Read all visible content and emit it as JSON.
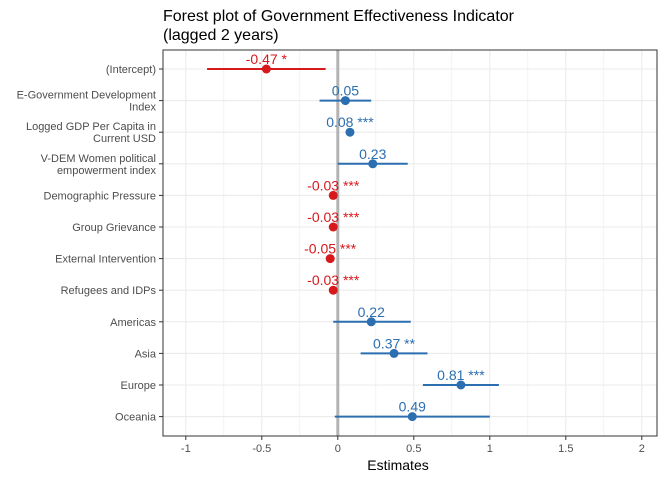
{
  "chart_data": {
    "type": "forest",
    "title_lines": [
      "Forest plot of Government Effectiveness Indicator",
      "(lagged 2 years)"
    ],
    "xlabel": "Estimates",
    "xlim": [
      -1.15,
      2.1
    ],
    "xticks": [
      -1,
      -0.5,
      0,
      0.5,
      1,
      1.5,
      2
    ],
    "xtick_labels": [
      "-1",
      "-0.5",
      "0",
      "0.5",
      "1",
      "1.5",
      "2"
    ],
    "reference_line": 0,
    "grid": true,
    "colors": {
      "negative": "#d7191c",
      "positive": "#2c6fb0",
      "reference": "#b3b3b3",
      "grid": "#ebebeb"
    },
    "terms": [
      {
        "label": [
          "(Intercept)"
        ],
        "estimate": -0.47,
        "low": -0.86,
        "high": -0.08,
        "text": "-0.47 *",
        "sign": "negative"
      },
      {
        "label": [
          "E-Government Development",
          "Index"
        ],
        "estimate": 0.05,
        "low": -0.12,
        "high": 0.22,
        "text": "0.05",
        "sign": "positive"
      },
      {
        "label": [
          "Logged GDP Per Capita in",
          "Current USD"
        ],
        "estimate": 0.08,
        "low": 0.06,
        "high": 0.1,
        "text": "0.08 ***",
        "sign": "positive"
      },
      {
        "label": [
          "V-DEM Women political",
          "empowerment index"
        ],
        "estimate": 0.23,
        "low": 0.0,
        "high": 0.46,
        "text": "0.23",
        "sign": "positive"
      },
      {
        "label": [
          "Demographic Pressure"
        ],
        "estimate": -0.03,
        "low": -0.04,
        "high": -0.02,
        "text": "-0.03 ***",
        "sign": "negative"
      },
      {
        "label": [
          "Group Grievance"
        ],
        "estimate": -0.03,
        "low": -0.04,
        "high": -0.02,
        "text": "-0.03 ***",
        "sign": "negative"
      },
      {
        "label": [
          "External Intervention"
        ],
        "estimate": -0.05,
        "low": -0.06,
        "high": -0.04,
        "text": "-0.05 ***",
        "sign": "negative"
      },
      {
        "label": [
          "Refugees and IDPs"
        ],
        "estimate": -0.03,
        "low": -0.04,
        "high": -0.02,
        "text": "-0.03 ***",
        "sign": "negative"
      },
      {
        "label": [
          "Americas"
        ],
        "estimate": 0.22,
        "low": -0.03,
        "high": 0.48,
        "text": "0.22",
        "sign": "positive"
      },
      {
        "label": [
          "Asia"
        ],
        "estimate": 0.37,
        "low": 0.15,
        "high": 0.59,
        "text": "0.37 **",
        "sign": "positive"
      },
      {
        "label": [
          "Europe"
        ],
        "estimate": 0.81,
        "low": 0.56,
        "high": 1.06,
        "text": "0.81 ***",
        "sign": "positive"
      },
      {
        "label": [
          "Oceania"
        ],
        "estimate": 0.49,
        "low": -0.02,
        "high": 1.0,
        "text": "0.49",
        "sign": "positive"
      }
    ]
  }
}
